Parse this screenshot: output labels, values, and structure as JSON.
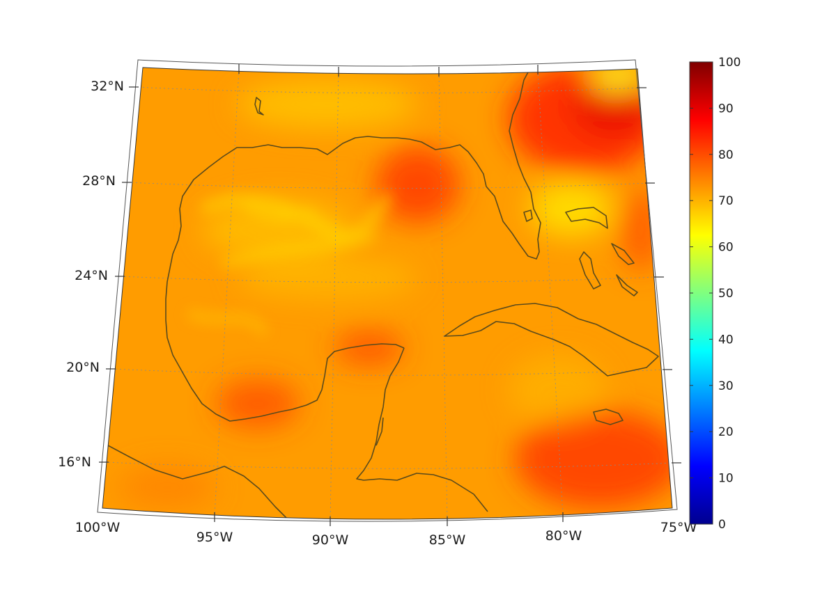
{
  "map": {
    "projection": "conic",
    "region": "Gulf of Mexico and western Caribbean",
    "lon_range": [
      -100,
      -75
    ],
    "lat_range": [
      14,
      33
    ],
    "gridlines": true,
    "coastlines": true,
    "colormap": "jet",
    "colors": {
      "ocean_base": "#ff9a00",
      "coast": "#5a4a1c",
      "grid": "#8a8a8a",
      "frame": "#333333"
    }
  },
  "axes": {
    "lat_ticks": [
      {
        "value": 32,
        "label": "32°N"
      },
      {
        "value": 28,
        "label": "28°N"
      },
      {
        "value": 24,
        "label": "24°N"
      },
      {
        "value": 20,
        "label": "20°N"
      },
      {
        "value": 16,
        "label": "16°N"
      }
    ],
    "lon_ticks": [
      {
        "value": -100,
        "label": "100°W"
      },
      {
        "value": -95,
        "label": "95°W"
      },
      {
        "value": -90,
        "label": "90°W"
      },
      {
        "value": -85,
        "label": "85°W"
      },
      {
        "value": -80,
        "label": "80°W"
      },
      {
        "value": -75,
        "label": "75°W"
      }
    ]
  },
  "colorbar": {
    "min": 0,
    "max": 100,
    "placement": "right",
    "ticks": [
      "0",
      "10",
      "20",
      "30",
      "40",
      "50",
      "60",
      "70",
      "80",
      "90",
      "100"
    ]
  }
}
